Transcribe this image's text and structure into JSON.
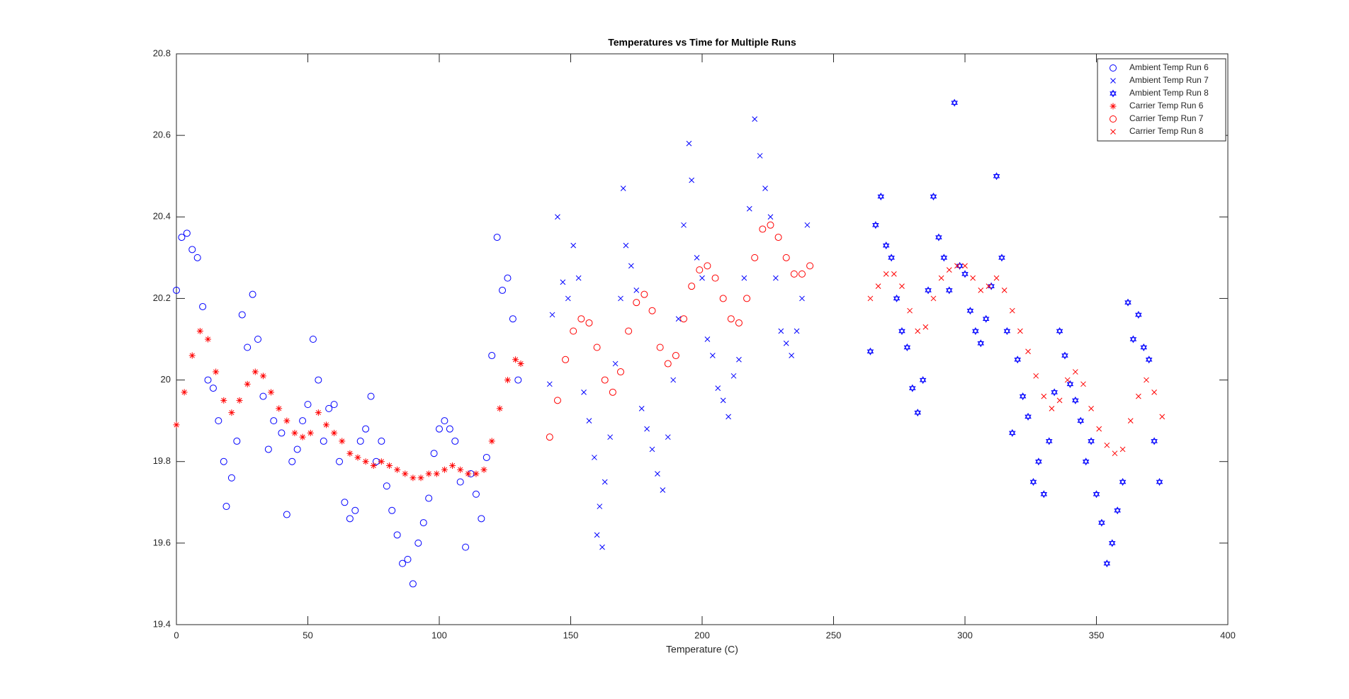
{
  "chart_data": {
    "type": "scatter",
    "title": "Temperatures vs Time for Multiple Runs",
    "x_label": "Temperature (C)",
    "xlim": [
      0,
      400
    ],
    "xticks": [
      0,
      50,
      100,
      150,
      200,
      250,
      300,
      350,
      400
    ],
    "ylim": [
      19.4,
      20.8
    ],
    "yticks": [
      19.4,
      19.6,
      19.8,
      20,
      20.2,
      20.4,
      20.6,
      20.8
    ],
    "grid": false,
    "legend": "northeast",
    "series": [
      {
        "name": "Ambient Temp Run 6",
        "color": "#0000ff",
        "marker": "circle",
        "x": [
          0,
          2,
          4,
          6,
          8,
          10,
          12,
          14,
          16,
          18,
          19,
          21,
          23,
          25,
          27,
          29,
          31,
          33,
          35,
          37,
          40,
          42,
          44,
          46,
          48,
          50,
          52,
          54,
          56,
          58,
          60,
          62,
          64,
          66,
          68,
          70,
          72,
          74,
          76,
          78,
          80,
          82,
          84,
          86,
          88,
          90,
          92,
          94,
          96,
          98,
          100,
          102,
          104,
          106,
          108,
          110,
          112,
          114,
          116,
          118,
          120,
          122,
          124,
          126,
          128,
          130
        ],
        "values": [
          20.22,
          20.35,
          20.36,
          20.32,
          20.3,
          20.18,
          20.0,
          19.98,
          19.9,
          19.8,
          19.69,
          19.76,
          19.85,
          20.16,
          20.08,
          20.21,
          20.1,
          19.96,
          19.83,
          19.9,
          19.87,
          19.67,
          19.8,
          19.83,
          19.9,
          19.94,
          20.1,
          20.0,
          19.85,
          19.93,
          19.94,
          19.8,
          19.7,
          19.66,
          19.68,
          19.85,
          19.88,
          19.96,
          19.8,
          19.85,
          19.74,
          19.68,
          19.62,
          19.55,
          19.56,
          19.5,
          19.6,
          19.65,
          19.71,
          19.82,
          19.88,
          19.9,
          19.88,
          19.85,
          19.75,
          19.59,
          19.77,
          19.72,
          19.66,
          19.81,
          20.06,
          20.35,
          20.22,
          20.25,
          20.15,
          20.0
        ]
      },
      {
        "name": "Ambient Temp Run 7",
        "color": "#0000ff",
        "marker": "x",
        "x": [
          142,
          143,
          145,
          147,
          149,
          151,
          153,
          155,
          157,
          159,
          160,
          161,
          162,
          163,
          165,
          167,
          169,
          170,
          171,
          173,
          175,
          177,
          179,
          181,
          183,
          185,
          187,
          189,
          191,
          193,
          195,
          196,
          198,
          200,
          202,
          204,
          206,
          208,
          210,
          212,
          214,
          216,
          218,
          220,
          222,
          224,
          226,
          228,
          230,
          232,
          234,
          236,
          238,
          240
        ],
        "values": [
          19.99,
          20.16,
          20.4,
          20.24,
          20.2,
          20.33,
          20.25,
          19.97,
          19.9,
          19.81,
          19.62,
          19.69,
          19.59,
          19.75,
          19.86,
          20.04,
          20.2,
          20.47,
          20.33,
          20.28,
          20.22,
          19.93,
          19.88,
          19.83,
          19.77,
          19.73,
          19.86,
          20.0,
          20.15,
          20.38,
          20.58,
          20.49,
          20.3,
          20.25,
          20.1,
          20.06,
          19.98,
          19.95,
          19.91,
          20.01,
          20.05,
          20.25,
          20.42,
          20.64,
          20.55,
          20.47,
          20.4,
          20.25,
          20.12,
          20.09,
          20.06,
          20.12,
          20.2,
          20.38
        ]
      },
      {
        "name": "Ambient Temp Run 8",
        "color": "#0000ff",
        "marker": "hexagram",
        "x": [
          264,
          266,
          268,
          270,
          272,
          274,
          276,
          278,
          280,
          282,
          284,
          286,
          288,
          290,
          292,
          294,
          296,
          298,
          300,
          302,
          304,
          306,
          308,
          310,
          312,
          314,
          316,
          318,
          320,
          322,
          324,
          326,
          328,
          330,
          332,
          334,
          336,
          338,
          340,
          342,
          344,
          346,
          348,
          350,
          352,
          354,
          356,
          358,
          360,
          362,
          364,
          366,
          368,
          370,
          372,
          374
        ],
        "values": [
          20.07,
          20.38,
          20.45,
          20.33,
          20.3,
          20.2,
          20.12,
          20.08,
          19.98,
          19.92,
          20.0,
          20.22,
          20.45,
          20.35,
          20.3,
          20.22,
          20.68,
          20.28,
          20.26,
          20.17,
          20.12,
          20.09,
          20.15,
          20.23,
          20.5,
          20.3,
          20.12,
          19.87,
          20.05,
          19.96,
          19.91,
          19.75,
          19.8,
          19.72,
          19.85,
          19.97,
          20.12,
          20.06,
          19.99,
          19.95,
          19.9,
          19.8,
          19.85,
          19.72,
          19.65,
          19.55,
          19.6,
          19.68,
          19.75,
          20.19,
          20.1,
          20.16,
          20.08,
          20.05,
          19.85,
          19.75
        ]
      },
      {
        "name": "Carrier Temp Run 6",
        "color": "#ff0000",
        "marker": "asterisk",
        "x": [
          0,
          3,
          6,
          9,
          12,
          15,
          18,
          21,
          24,
          27,
          30,
          33,
          36,
          39,
          42,
          45,
          48,
          51,
          54,
          57,
          60,
          63,
          66,
          69,
          72,
          75,
          78,
          81,
          84,
          87,
          90,
          93,
          96,
          99,
          102,
          105,
          108,
          111,
          114,
          117,
          120,
          123,
          126,
          129,
          131
        ],
        "values": [
          19.89,
          19.97,
          20.06,
          20.12,
          20.1,
          20.02,
          19.95,
          19.92,
          19.95,
          19.99,
          20.02,
          20.01,
          19.97,
          19.93,
          19.9,
          19.87,
          19.86,
          19.87,
          19.92,
          19.89,
          19.87,
          19.85,
          19.82,
          19.81,
          19.8,
          19.79,
          19.8,
          19.79,
          19.78,
          19.77,
          19.76,
          19.76,
          19.77,
          19.77,
          19.78,
          19.79,
          19.78,
          19.77,
          19.77,
          19.78,
          19.85,
          19.93,
          20.0,
          20.05,
          20.04
        ]
      },
      {
        "name": "Carrier Temp Run 7",
        "color": "#ff0000",
        "marker": "circle",
        "x": [
          142,
          145,
          148,
          151,
          154,
          157,
          160,
          163,
          166,
          169,
          172,
          175,
          178,
          181,
          184,
          187,
          190,
          193,
          196,
          199,
          202,
          205,
          208,
          211,
          214,
          217,
          220,
          223,
          226,
          229,
          232,
          235,
          238,
          241
        ],
        "values": [
          19.86,
          19.95,
          20.05,
          20.12,
          20.15,
          20.14,
          20.08,
          20.0,
          19.97,
          20.02,
          20.12,
          20.19,
          20.21,
          20.17,
          20.08,
          20.04,
          20.06,
          20.15,
          20.23,
          20.27,
          20.28,
          20.25,
          20.2,
          20.15,
          20.14,
          20.2,
          20.3,
          20.37,
          20.38,
          20.35,
          20.3,
          20.26,
          20.26,
          20.28
        ]
      },
      {
        "name": "Carrier Temp Run 8",
        "color": "#ff0000",
        "marker": "x",
        "x": [
          264,
          267,
          270,
          273,
          276,
          279,
          282,
          285,
          288,
          291,
          294,
          297,
          300,
          303,
          306,
          309,
          312,
          315,
          318,
          321,
          324,
          327,
          330,
          333,
          336,
          339,
          342,
          345,
          348,
          351,
          354,
          357,
          360,
          363,
          366,
          369,
          372,
          375
        ],
        "values": [
          20.2,
          20.23,
          20.26,
          20.26,
          20.23,
          20.17,
          20.12,
          20.13,
          20.2,
          20.25,
          20.27,
          20.28,
          20.28,
          20.25,
          20.22,
          20.23,
          20.25,
          20.22,
          20.17,
          20.12,
          20.07,
          20.01,
          19.96,
          19.93,
          19.95,
          20.0,
          20.02,
          19.99,
          19.93,
          19.88,
          19.84,
          19.82,
          19.83,
          19.9,
          19.96,
          20.0,
          19.97,
          19.91
        ]
      }
    ]
  }
}
